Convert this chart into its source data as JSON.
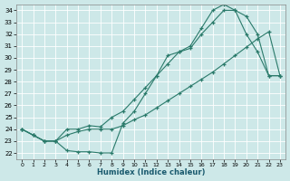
{
  "xlabel": "Humidex (Indice chaleur)",
  "xlim": [
    -0.5,
    23.5
  ],
  "ylim": [
    21.5,
    34.5
  ],
  "yticks": [
    22,
    23,
    24,
    25,
    26,
    27,
    28,
    29,
    30,
    31,
    32,
    33,
    34
  ],
  "xticks": [
    0,
    1,
    2,
    3,
    4,
    5,
    6,
    7,
    8,
    9,
    10,
    11,
    12,
    13,
    14,
    15,
    16,
    17,
    18,
    19,
    20,
    21,
    22,
    23
  ],
  "line_color": "#2a7a6a",
  "bg_color": "#cde8e8",
  "line1_x": [
    0,
    1,
    2,
    3,
    4,
    5,
    6,
    7,
    8,
    9,
    10,
    11,
    12,
    13,
    14,
    15,
    16,
    17,
    18,
    19,
    20,
    21,
    22,
    23
  ],
  "line1_y": [
    24.0,
    23.5,
    23.0,
    23.0,
    22.2,
    22.1,
    22.1,
    22.0,
    22.0,
    24.5,
    25.5,
    27.0,
    28.5,
    30.2,
    30.5,
    30.8,
    32.0,
    33.0,
    34.0,
    34.0,
    32.0,
    30.5,
    28.5,
    28.5
  ],
  "line2_x": [
    0,
    1,
    2,
    3,
    4,
    5,
    6,
    7,
    8,
    9,
    10,
    11,
    12,
    13,
    14,
    15,
    16,
    17,
    18,
    19,
    20,
    21,
    22,
    23
  ],
  "line2_y": [
    24.0,
    23.5,
    23.0,
    23.0,
    24.0,
    24.0,
    24.3,
    24.2,
    25.0,
    25.5,
    26.5,
    27.5,
    28.5,
    29.5,
    30.5,
    31.0,
    32.5,
    34.0,
    34.5,
    34.0,
    33.5,
    32.0,
    28.5,
    28.5
  ],
  "line3_x": [
    0,
    1,
    2,
    3,
    4,
    5,
    6,
    7,
    8,
    9,
    10,
    11,
    12,
    13,
    14,
    15,
    16,
    17,
    18,
    19,
    20,
    21,
    22,
    23
  ],
  "line3_y": [
    24.0,
    23.5,
    23.0,
    23.0,
    23.5,
    23.8,
    24.0,
    24.0,
    24.0,
    24.3,
    24.8,
    25.2,
    25.8,
    26.4,
    27.0,
    27.6,
    28.2,
    28.8,
    29.5,
    30.2,
    30.9,
    31.6,
    32.2,
    28.5
  ]
}
